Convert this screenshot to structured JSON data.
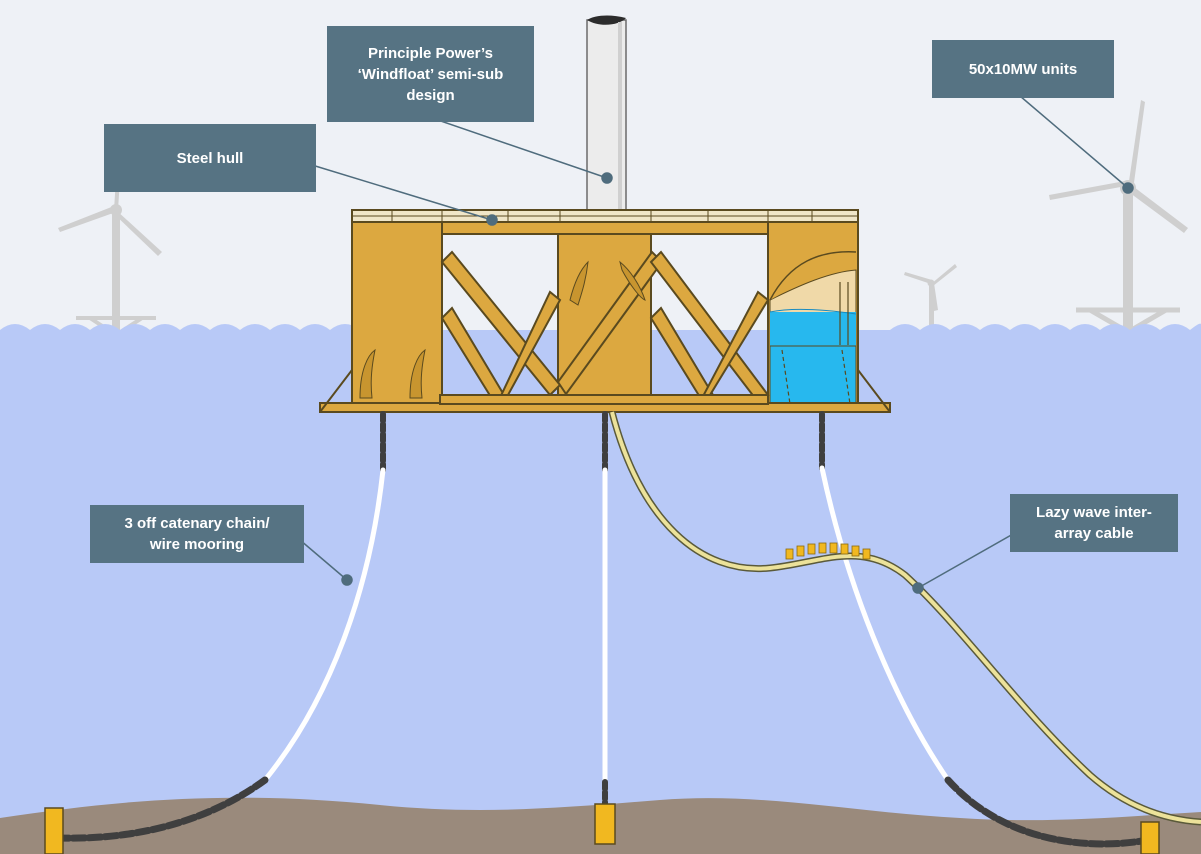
{
  "callouts": {
    "principle_power": "Principle Power’s\n‘Windfloat’ semi-sub\ndesign",
    "steel_hull": "Steel hull",
    "units": "50x10MW units",
    "mooring": "3 off catenary chain/\nwire mooring",
    "cable": "Lazy wave inter-\narray cable"
  },
  "colors": {
    "sky": "#eef1f6",
    "sea": "#b8c9f7",
    "seabed": "#9a8a7c",
    "hull": "#dca840",
    "hull_outline": "#5a4a1f",
    "ballast_water": "#27b8ee",
    "callout_bg": "#567383",
    "callout_dot": "#4f6c7d",
    "turbine_ghost": "#cfcfcf",
    "tower": "#ececec",
    "chain": "#3f3f3f",
    "wire": "#f2f2f2",
    "cable": "#ece29a",
    "buoyancy": "#f1b820"
  },
  "icons": {
    "turbine": "wind-turbine-icon",
    "anchor": "anchor-block-icon"
  }
}
